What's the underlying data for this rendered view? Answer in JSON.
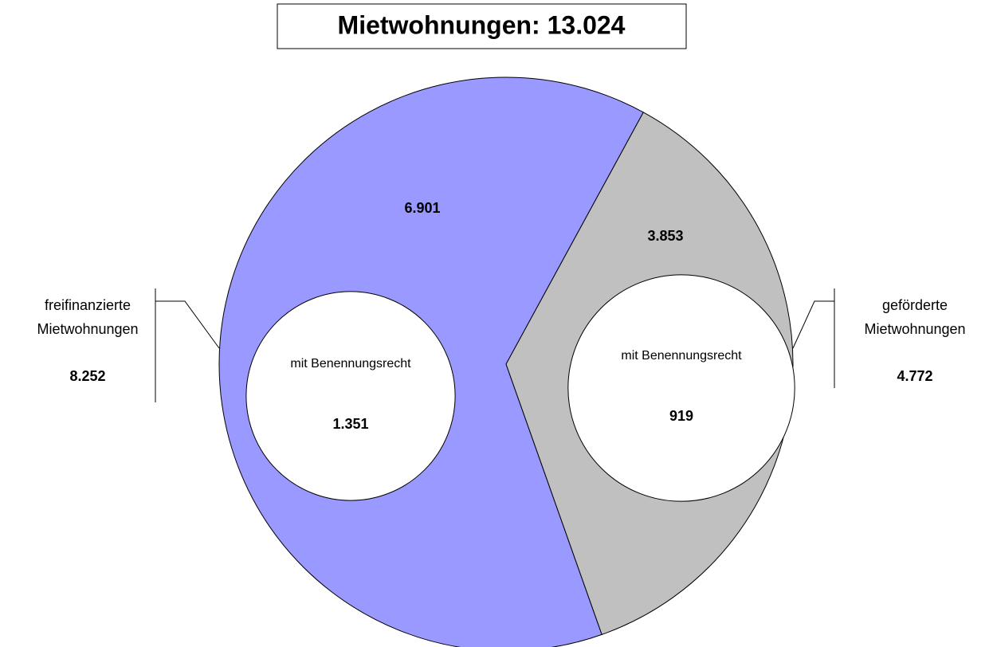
{
  "chart_data": {
    "type": "pie",
    "title": "Mietwohnungen: 13.024",
    "categories": [
      "freifinanzierte Mietwohnungen",
      "geförderte Mietwohnungen"
    ],
    "values": [
      8252,
      4772
    ],
    "value_labels": [
      "8.252",
      "4.772"
    ],
    "colors": [
      "#9999ff",
      "#c0c0c0"
    ],
    "remainder": {
      "values": [
        6901,
        3853
      ],
      "value_labels": [
        "6.901",
        "3.853"
      ]
    },
    "inner": {
      "label": "mit Benennungsrecht",
      "values": [
        1351,
        919
      ],
      "value_labels": [
        "1.351",
        "919"
      ],
      "color": "#ffffff"
    }
  }
}
